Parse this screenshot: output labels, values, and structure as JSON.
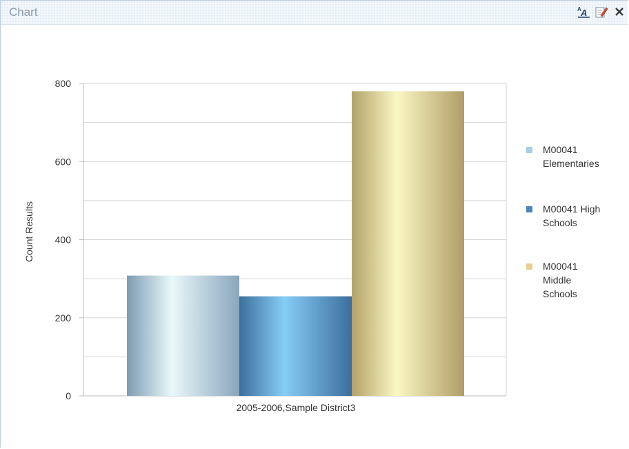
{
  "window": {
    "title": "Chart",
    "tools": [
      {
        "icon": "text-format-icon"
      },
      {
        "icon": "edit-icon"
      },
      {
        "icon": "close-icon"
      }
    ]
  },
  "chart_data": {
    "type": "bar",
    "categories": [
      "2005-2006,Sample District3"
    ],
    "series": [
      {
        "name": "M00041 Elementaries",
        "values": [
          308
        ],
        "color": "#a9cfe4"
      },
      {
        "name": "M00041 High Schools",
        "values": [
          255
        ],
        "color": "#4a86b8"
      },
      {
        "name": "M00041 Middle Schools",
        "values": [
          780
        ],
        "color": "#e8d08c"
      }
    ],
    "xlabel": "",
    "ylabel": "Count Results",
    "ylim": [
      0,
      800
    ],
    "yticks": [
      "0",
      "200",
      "400",
      "600",
      "800"
    ],
    "grid": true,
    "legend": "right"
  }
}
